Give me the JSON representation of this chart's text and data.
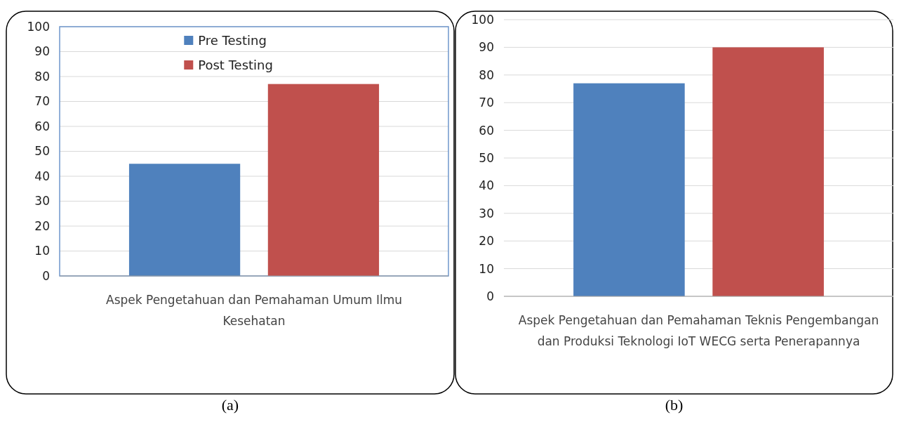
{
  "chart_data": [
    {
      "type": "bar",
      "categories": [
        "Aspek Pengetahuan dan Pemahaman Umum Ilmu Kesehatan"
      ],
      "series": [
        {
          "name": "Pre Testing",
          "color": "#4f81bd",
          "values": [
            45
          ]
        },
        {
          "name": "Post Testing",
          "color": "#c0504d",
          "values": [
            77
          ]
        }
      ],
      "ylim": [
        0,
        100
      ],
      "yticks": [
        0,
        10,
        20,
        30,
        40,
        50,
        60,
        70,
        80,
        90,
        100
      ],
      "grid": "y",
      "legend": "top",
      "annotations": [
        "(a)"
      ]
    },
    {
      "type": "bar",
      "categories": [
        "Aspek Pengetahuan dan Pemahaman Teknis Pengembangan dan Produksi Teknologi IoT WECG serta Penerapannya"
      ],
      "series": [
        {
          "color": "#4f81bd",
          "values": [
            77
          ]
        },
        {
          "color": "#c0504d",
          "values": [
            90
          ]
        }
      ],
      "ylim": [
        0,
        100
      ],
      "yticks": [
        0,
        10,
        20,
        30,
        40,
        50,
        60,
        70,
        80,
        90,
        100
      ],
      "grid": "y",
      "annotations": [
        "(b)"
      ]
    }
  ]
}
